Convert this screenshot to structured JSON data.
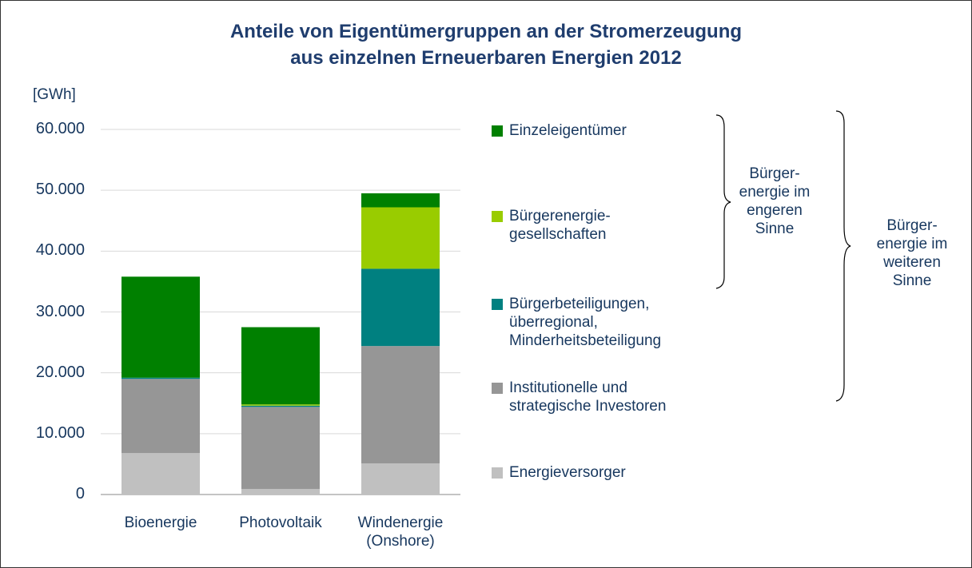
{
  "chart_data": {
    "type": "stacked_bar",
    "title": "Anteile von Eigentümergruppen an der Stromerzeugung\naus einzelnen Erneuerbaren Energien 2012",
    "y_label": "[GWh]",
    "categories": [
      "Bioenergie",
      "Photovoltaik",
      "Windenergie\n(Onshore)"
    ],
    "series": [
      {
        "name": "Energieversorger",
        "color": "#c0c0c0",
        "values": [
          6800,
          900,
          5100
        ]
      },
      {
        "name": "Institutionelle und\nstrategische Investoren",
        "color": "#969696",
        "values": [
          12200,
          13500,
          19300
        ]
      },
      {
        "name": "Bürgerbeteiligungen,\nüberregional,\nMinderheitsbeteiligung",
        "color": "#008080",
        "values": [
          200,
          200,
          12700
        ]
      },
      {
        "name": "Bürgerenergie-\ngesellschaften",
        "color": "#99cc00",
        "values": [
          0,
          200,
          10100
        ]
      },
      {
        "name": "Einzeleigentümer",
        "color": "#008000",
        "values": [
          16600,
          12700,
          2300
        ]
      }
    ],
    "ylim": [
      0,
      60000
    ],
    "yticks": [
      0,
      {
        "value": 10000,
        "label": "10.000"
      },
      {
        "value": 20000,
        "label": "20.000"
      },
      {
        "value": 30000,
        "label": "30.000"
      },
      {
        "value": 40000,
        "label": "40.000"
      },
      {
        "value": 50000,
        "label": "50.000"
      },
      {
        "value": 60000,
        "label": "60.000"
      }
    ],
    "grid": true,
    "annotations": [
      "Bürger-\nenergie im\nengeren\nSinne",
      "Bürger-\nenergie im\nweiteren\nSinne"
    ]
  }
}
